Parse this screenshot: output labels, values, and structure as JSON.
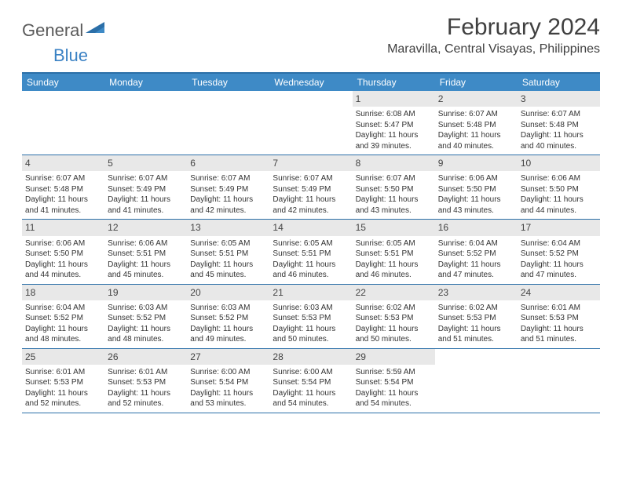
{
  "logo": {
    "textA": "General",
    "textB": "Blue"
  },
  "title": "February 2024",
  "location": "Maravilla, Central Visayas, Philippines",
  "colors": {
    "headerBar": "#3e8ac6",
    "divider": "#2b6fa8",
    "dayNumberBg": "#e8e8e8",
    "textDark": "#333333",
    "logoBlue": "#3b82c4",
    "logoGray": "#5a5a5a"
  },
  "dayNames": [
    "Sunday",
    "Monday",
    "Tuesday",
    "Wednesday",
    "Thursday",
    "Friday",
    "Saturday"
  ],
  "weeks": [
    [
      null,
      null,
      null,
      null,
      {
        "n": "1",
        "sunrise": "6:08 AM",
        "sunset": "5:47 PM",
        "dlA": "Daylight: 11 hours",
        "dlB": "and 39 minutes."
      },
      {
        "n": "2",
        "sunrise": "6:07 AM",
        "sunset": "5:48 PM",
        "dlA": "Daylight: 11 hours",
        "dlB": "and 40 minutes."
      },
      {
        "n": "3",
        "sunrise": "6:07 AM",
        "sunset": "5:48 PM",
        "dlA": "Daylight: 11 hours",
        "dlB": "and 40 minutes."
      }
    ],
    [
      {
        "n": "4",
        "sunrise": "6:07 AM",
        "sunset": "5:48 PM",
        "dlA": "Daylight: 11 hours",
        "dlB": "and 41 minutes."
      },
      {
        "n": "5",
        "sunrise": "6:07 AM",
        "sunset": "5:49 PM",
        "dlA": "Daylight: 11 hours",
        "dlB": "and 41 minutes."
      },
      {
        "n": "6",
        "sunrise": "6:07 AM",
        "sunset": "5:49 PM",
        "dlA": "Daylight: 11 hours",
        "dlB": "and 42 minutes."
      },
      {
        "n": "7",
        "sunrise": "6:07 AM",
        "sunset": "5:49 PM",
        "dlA": "Daylight: 11 hours",
        "dlB": "and 42 minutes."
      },
      {
        "n": "8",
        "sunrise": "6:07 AM",
        "sunset": "5:50 PM",
        "dlA": "Daylight: 11 hours",
        "dlB": "and 43 minutes."
      },
      {
        "n": "9",
        "sunrise": "6:06 AM",
        "sunset": "5:50 PM",
        "dlA": "Daylight: 11 hours",
        "dlB": "and 43 minutes."
      },
      {
        "n": "10",
        "sunrise": "6:06 AM",
        "sunset": "5:50 PM",
        "dlA": "Daylight: 11 hours",
        "dlB": "and 44 minutes."
      }
    ],
    [
      {
        "n": "11",
        "sunrise": "6:06 AM",
        "sunset": "5:50 PM",
        "dlA": "Daylight: 11 hours",
        "dlB": "and 44 minutes."
      },
      {
        "n": "12",
        "sunrise": "6:06 AM",
        "sunset": "5:51 PM",
        "dlA": "Daylight: 11 hours",
        "dlB": "and 45 minutes."
      },
      {
        "n": "13",
        "sunrise": "6:05 AM",
        "sunset": "5:51 PM",
        "dlA": "Daylight: 11 hours",
        "dlB": "and 45 minutes."
      },
      {
        "n": "14",
        "sunrise": "6:05 AM",
        "sunset": "5:51 PM",
        "dlA": "Daylight: 11 hours",
        "dlB": "and 46 minutes."
      },
      {
        "n": "15",
        "sunrise": "6:05 AM",
        "sunset": "5:51 PM",
        "dlA": "Daylight: 11 hours",
        "dlB": "and 46 minutes."
      },
      {
        "n": "16",
        "sunrise": "6:04 AM",
        "sunset": "5:52 PM",
        "dlA": "Daylight: 11 hours",
        "dlB": "and 47 minutes."
      },
      {
        "n": "17",
        "sunrise": "6:04 AM",
        "sunset": "5:52 PM",
        "dlA": "Daylight: 11 hours",
        "dlB": "and 47 minutes."
      }
    ],
    [
      {
        "n": "18",
        "sunrise": "6:04 AM",
        "sunset": "5:52 PM",
        "dlA": "Daylight: 11 hours",
        "dlB": "and 48 minutes."
      },
      {
        "n": "19",
        "sunrise": "6:03 AM",
        "sunset": "5:52 PM",
        "dlA": "Daylight: 11 hours",
        "dlB": "and 48 minutes."
      },
      {
        "n": "20",
        "sunrise": "6:03 AM",
        "sunset": "5:52 PM",
        "dlA": "Daylight: 11 hours",
        "dlB": "and 49 minutes."
      },
      {
        "n": "21",
        "sunrise": "6:03 AM",
        "sunset": "5:53 PM",
        "dlA": "Daylight: 11 hours",
        "dlB": "and 50 minutes."
      },
      {
        "n": "22",
        "sunrise": "6:02 AM",
        "sunset": "5:53 PM",
        "dlA": "Daylight: 11 hours",
        "dlB": "and 50 minutes."
      },
      {
        "n": "23",
        "sunrise": "6:02 AM",
        "sunset": "5:53 PM",
        "dlA": "Daylight: 11 hours",
        "dlB": "and 51 minutes."
      },
      {
        "n": "24",
        "sunrise": "6:01 AM",
        "sunset": "5:53 PM",
        "dlA": "Daylight: 11 hours",
        "dlB": "and 51 minutes."
      }
    ],
    [
      {
        "n": "25",
        "sunrise": "6:01 AM",
        "sunset": "5:53 PM",
        "dlA": "Daylight: 11 hours",
        "dlB": "and 52 minutes."
      },
      {
        "n": "26",
        "sunrise": "6:01 AM",
        "sunset": "5:53 PM",
        "dlA": "Daylight: 11 hours",
        "dlB": "and 52 minutes."
      },
      {
        "n": "27",
        "sunrise": "6:00 AM",
        "sunset": "5:54 PM",
        "dlA": "Daylight: 11 hours",
        "dlB": "and 53 minutes."
      },
      {
        "n": "28",
        "sunrise": "6:00 AM",
        "sunset": "5:54 PM",
        "dlA": "Daylight: 11 hours",
        "dlB": "and 54 minutes."
      },
      {
        "n": "29",
        "sunrise": "5:59 AM",
        "sunset": "5:54 PM",
        "dlA": "Daylight: 11 hours",
        "dlB": "and 54 minutes."
      },
      null,
      null
    ]
  ],
  "labels": {
    "sunrise": "Sunrise:",
    "sunset": "Sunset:"
  }
}
